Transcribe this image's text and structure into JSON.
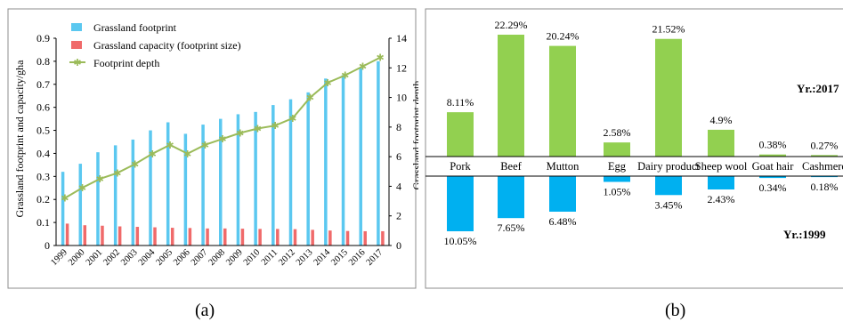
{
  "figure": {
    "label_a": "(a)",
    "label_b": "(b)"
  },
  "chart_data": [
    {
      "type": "bar",
      "categories": [
        "1999",
        "2000",
        "2001",
        "2002",
        "2003",
        "2004",
        "2005",
        "2006",
        "2007",
        "2008",
        "2009",
        "2010",
        "2011",
        "2012",
        "2013",
        "2014",
        "2015",
        "2016",
        "2017"
      ],
      "series": [
        {
          "name": "Grassland footprint",
          "axis": "left",
          "color": "#5BC8F0",
          "values": [
            0.32,
            0.355,
            0.405,
            0.435,
            0.46,
            0.5,
            0.535,
            0.485,
            0.525,
            0.55,
            0.57,
            0.58,
            0.61,
            0.635,
            0.665,
            0.725,
            0.74,
            0.77,
            0.8
          ]
        },
        {
          "name": "Grassland capacity (footprint size)",
          "axis": "left",
          "color": "#F06A6A",
          "values": [
            0.095,
            0.088,
            0.086,
            0.083,
            0.081,
            0.079,
            0.077,
            0.076,
            0.074,
            0.074,
            0.073,
            0.072,
            0.072,
            0.071,
            0.068,
            0.065,
            0.063,
            0.062,
            0.062
          ]
        },
        {
          "name": "Footprint depth",
          "axis": "right",
          "type": "line",
          "color": "#9BBB59",
          "values": [
            3.2,
            3.9,
            4.5,
            4.9,
            5.5,
            6.2,
            6.8,
            6.2,
            6.8,
            7.2,
            7.6,
            7.9,
            8.1,
            8.6,
            10.0,
            11.0,
            11.5,
            12.1,
            12.7
          ]
        }
      ],
      "ylabel": "Grassland footprint and capacity/gha",
      "y2label": "Grassland footprint depth",
      "ylim": [
        0,
        0.9
      ],
      "y2lim": [
        0,
        14
      ],
      "yticks": [
        "0",
        "0.1",
        "0.2",
        "0.3",
        "0.4",
        "0.5",
        "0.6",
        "0.7",
        "0.8",
        "0.9"
      ],
      "y2ticks": [
        "0",
        "2",
        "4",
        "6",
        "8",
        "10",
        "12",
        "14"
      ],
      "legend_position": "top-left"
    },
    {
      "type": "bar",
      "categories": [
        "Pork",
        "Beef",
        "Mutton",
        "Egg",
        "Dairy product",
        "Sheep wool",
        "Goat hair",
        "Cashmere"
      ],
      "series": [
        {
          "name": "Yr.:2017",
          "color": "#92D050",
          "values": [
            8.11,
            22.29,
            20.24,
            2.58,
            21.52,
            4.9,
            0.38,
            0.27
          ],
          "labels": [
            "8.11%",
            "22.29%",
            "20.24%",
            "2.58%",
            "21.52%",
            "4.9%",
            "0.38%",
            "0.27%"
          ]
        },
        {
          "name": "Yr.:1999",
          "color": "#00B0F0",
          "values": [
            10.05,
            7.65,
            6.48,
            1.05,
            3.45,
            2.43,
            0.34,
            0.18
          ],
          "labels": [
            "10.05%",
            "7.65%",
            "6.48%",
            "1.05%",
            "3.45%",
            "2.43%",
            "0.34%",
            "0.18%"
          ]
        }
      ],
      "legend_position": "right"
    }
  ]
}
